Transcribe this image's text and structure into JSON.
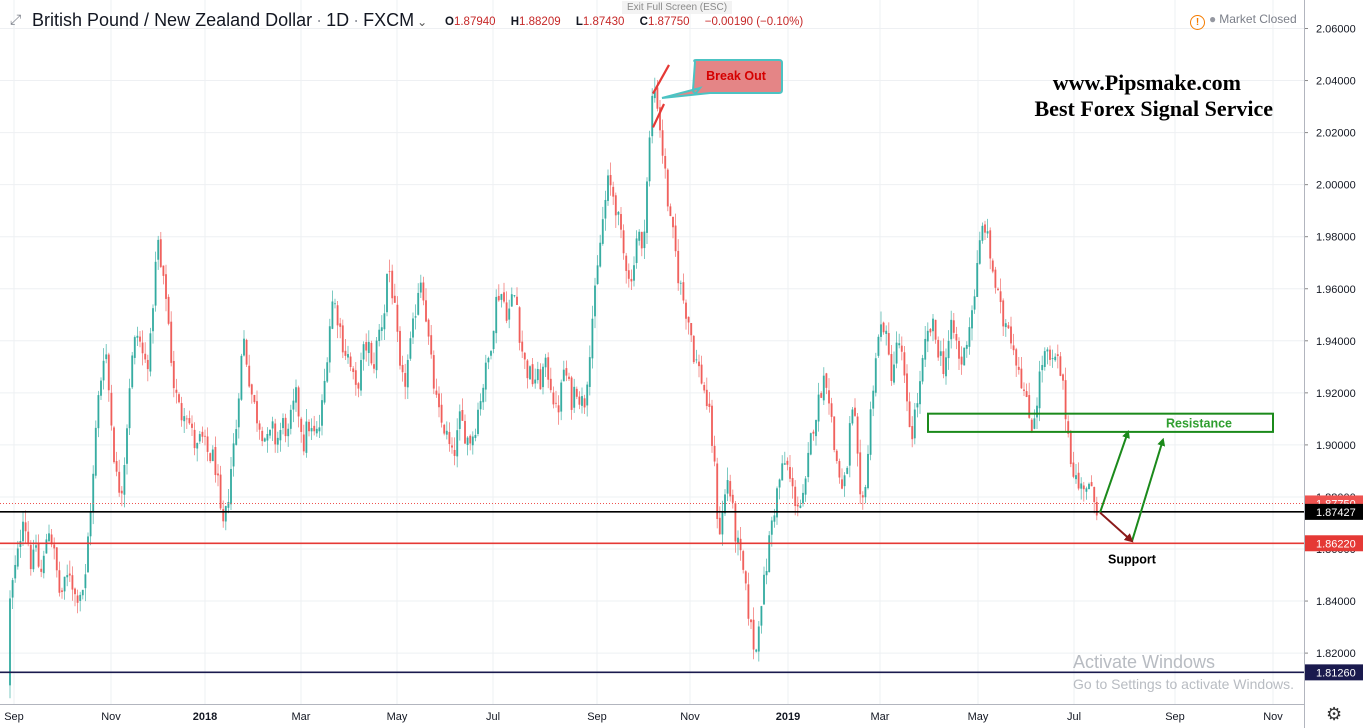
{
  "header": {
    "expand_icon": "expand-icon",
    "instrument": "British Pound / New Zealand Dollar",
    "interval": "1D",
    "source": "FXCM",
    "ohlc": {
      "o_label": "O",
      "o": "1.87940",
      "h_label": "H",
      "h": "1.88209",
      "l_label": "L",
      "l": "1.87430",
      "c_label": "C",
      "c": "1.87750",
      "change": "−0.00190 (−0.10%)"
    },
    "exit_fullscreen": "Exit Full Screen (ESC)",
    "market_status": "Market Closed"
  },
  "watermark": {
    "line1": "www.Pipsmake.com",
    "line2": "Best Forex Signal Service"
  },
  "windows_notice": {
    "line1": "Activate Windows",
    "line2": "Go to Settings to activate Windows."
  },
  "colors": {
    "up": "#26a69a",
    "down": "#ef5350",
    "resistance": "#1b8a1b",
    "support": "#8b1a1a",
    "red_line": "#e53935",
    "navy_line": "#1a1a4e"
  },
  "chart_data": {
    "type": "candlestick",
    "ylim": [
      1.806,
      2.066
    ],
    "y_ticks": [
      "2.06000",
      "2.04000",
      "2.02000",
      "2.00000",
      "1.98000",
      "1.96000",
      "1.94000",
      "1.92000",
      "1.90000",
      "1.88000",
      "1.86000",
      "1.84000",
      "1.82000"
    ],
    "x_labels": [
      "Sep",
      "Nov",
      "2018",
      "Mar",
      "May",
      "Jul",
      "Sep",
      "Nov",
      "2019",
      "Mar",
      "May",
      "Jul",
      "Sep",
      "Nov"
    ],
    "close_path": [
      [
        0,
        1.808
      ],
      [
        6,
        1.826
      ],
      [
        11,
        1.843
      ],
      [
        18,
        1.858
      ],
      [
        23,
        1.874
      ],
      [
        27,
        1.866
      ],
      [
        32,
        1.852
      ],
      [
        36,
        1.862
      ],
      [
        40,
        1.848
      ],
      [
        44,
        1.856
      ],
      [
        48,
        1.87
      ],
      [
        52,
        1.863
      ],
      [
        56,
        1.853
      ],
      [
        60,
        1.842
      ],
      [
        65,
        1.846
      ],
      [
        70,
        1.852
      ],
      [
        75,
        1.842
      ],
      [
        80,
        1.844
      ],
      [
        85,
        1.846
      ],
      [
        89,
        1.87
      ],
      [
        93,
        1.886
      ],
      [
        97,
        1.913
      ],
      [
        101,
        1.926
      ],
      [
        105,
        1.941
      ],
      [
        108,
        1.925
      ],
      [
        112,
        1.906
      ],
      [
        116,
        1.888
      ],
      [
        121,
        1.882
      ],
      [
        125,
        1.897
      ],
      [
        130,
        1.926
      ],
      [
        134,
        1.938
      ],
      [
        138,
        1.943
      ],
      [
        142,
        1.935
      ],
      [
        146,
        1.931
      ],
      [
        150,
        1.936
      ],
      [
        154,
        1.962
      ],
      [
        158,
        1.978
      ],
      [
        162,
        1.963
      ],
      [
        166,
        1.958
      ],
      [
        170,
        1.94
      ],
      [
        173,
        1.925
      ],
      [
        177,
        1.917
      ],
      [
        181,
        1.911
      ],
      [
        185,
        1.916
      ],
      [
        189,
        1.909
      ],
      [
        193,
        1.902
      ],
      [
        197,
        1.898
      ],
      [
        201,
        1.903
      ],
      [
        205,
        1.899
      ],
      [
        209,
        1.896
      ],
      [
        213,
        1.895
      ],
      [
        217,
        1.89
      ],
      [
        220,
        1.872
      ],
      [
        224,
        1.867
      ],
      [
        228,
        1.88
      ],
      [
        232,
        1.895
      ],
      [
        236,
        1.906
      ],
      [
        240,
        1.929
      ],
      [
        244,
        1.94
      ],
      [
        248,
        1.929
      ],
      [
        252,
        1.919
      ],
      [
        256,
        1.912
      ],
      [
        260,
        1.908
      ],
      [
        264,
        1.904
      ],
      [
        268,
        1.9
      ],
      [
        272,
        1.906
      ],
      [
        276,
        1.901
      ],
      [
        280,
        1.905
      ],
      [
        284,
        1.909
      ],
      [
        288,
        1.903
      ],
      [
        292,
        1.912
      ],
      [
        296,
        1.918
      ],
      [
        300,
        1.91
      ],
      [
        304,
        1.9
      ],
      [
        308,
        1.909
      ],
      [
        312,
        1.904
      ],
      [
        316,
        1.903
      ],
      [
        320,
        1.908
      ],
      [
        324,
        1.921
      ],
      [
        328,
        1.94
      ],
      [
        332,
        1.955
      ],
      [
        336,
        1.953
      ],
      [
        340,
        1.945
      ],
      [
        344,
        1.937
      ],
      [
        348,
        1.934
      ],
      [
        352,
        1.927
      ],
      [
        356,
        1.92
      ],
      [
        360,
        1.928
      ],
      [
        364,
        1.936
      ],
      [
        368,
        1.94
      ],
      [
        372,
        1.927
      ],
      [
        376,
        1.937
      ],
      [
        380,
        1.945
      ],
      [
        384,
        1.95
      ],
      [
        388,
        1.971
      ],
      [
        392,
        1.96
      ],
      [
        396,
        1.946
      ],
      [
        400,
        1.927
      ],
      [
        404,
        1.922
      ],
      [
        408,
        1.932
      ],
      [
        412,
        1.941
      ],
      [
        416,
        1.954
      ],
      [
        420,
        1.966
      ],
      [
        424,
        1.958
      ],
      [
        428,
        1.942
      ],
      [
        432,
        1.928
      ],
      [
        436,
        1.917
      ],
      [
        440,
        1.909
      ],
      [
        444,
        1.907
      ],
      [
        448,
        1.901
      ],
      [
        452,
        1.895
      ],
      [
        456,
        1.9
      ],
      [
        460,
        1.91
      ],
      [
        464,
        1.906
      ],
      [
        468,
        1.902
      ],
      [
        472,
        1.903
      ],
      [
        476,
        1.909
      ],
      [
        480,
        1.918
      ],
      [
        484,
        1.925
      ],
      [
        488,
        1.932
      ],
      [
        492,
        1.943
      ],
      [
        496,
        1.955
      ],
      [
        500,
        1.96
      ],
      [
        504,
        1.955
      ],
      [
        508,
        1.95
      ],
      [
        512,
        1.956
      ],
      [
        516,
        1.958
      ],
      [
        520,
        1.942
      ],
      [
        524,
        1.932
      ],
      [
        528,
        1.928
      ],
      [
        532,
        1.925
      ],
      [
        536,
        1.926
      ],
      [
        540,
        1.924
      ],
      [
        544,
        1.93
      ],
      [
        548,
        1.928
      ],
      [
        552,
        1.922
      ],
      [
        556,
        1.912
      ],
      [
        560,
        1.917
      ],
      [
        564,
        1.93
      ],
      [
        568,
        1.923
      ],
      [
        572,
        1.917
      ],
      [
        576,
        1.924
      ],
      [
        580,
        1.918
      ],
      [
        584,
        1.915
      ],
      [
        588,
        1.93
      ],
      [
        592,
        1.948
      ],
      [
        596,
        1.96
      ],
      [
        600,
        1.977
      ],
      [
        604,
        1.99
      ],
      [
        608,
        2.0
      ],
      [
        612,
        1.998
      ],
      [
        616,
        1.992
      ],
      [
        620,
        1.981
      ],
      [
        624,
        1.972
      ],
      [
        628,
        1.969
      ],
      [
        631,
        1.96
      ],
      [
        634,
        1.973
      ],
      [
        638,
        1.984
      ],
      [
        642,
        1.972
      ],
      [
        645,
        1.99
      ],
      [
        648,
        2.007
      ],
      [
        651,
        2.025
      ],
      [
        653,
        2.038
      ],
      [
        656,
        2.036
      ],
      [
        658,
        2.03
      ],
      [
        661,
        2.018
      ],
      [
        664,
        2.008
      ],
      [
        667,
        1.997
      ],
      [
        670,
        1.985
      ],
      [
        674,
        1.978
      ],
      [
        678,
        1.966
      ],
      [
        682,
        1.958
      ],
      [
        686,
        1.952
      ],
      [
        690,
        1.946
      ],
      [
        694,
        1.935
      ],
      [
        698,
        1.93
      ],
      [
        702,
        1.925
      ],
      [
        706,
        1.918
      ],
      [
        710,
        1.909
      ],
      [
        714,
        1.894
      ],
      [
        717,
        1.875
      ],
      [
        720,
        1.867
      ],
      [
        724,
        1.878
      ],
      [
        728,
        1.888
      ],
      [
        732,
        1.876
      ],
      [
        736,
        1.864
      ],
      [
        740,
        1.857
      ],
      [
        743,
        1.851
      ],
      [
        746,
        1.842
      ],
      [
        749,
        1.835
      ],
      [
        752,
        1.826
      ],
      [
        756,
        1.82
      ],
      [
        759,
        1.835
      ],
      [
        762,
        1.843
      ],
      [
        765,
        1.848
      ],
      [
        768,
        1.859
      ],
      [
        771,
        1.869
      ],
      [
        775,
        1.877
      ],
      [
        778,
        1.884
      ],
      [
        782,
        1.89
      ],
      [
        786,
        1.894
      ],
      [
        790,
        1.886
      ],
      [
        794,
        1.88
      ],
      [
        798,
        1.878
      ],
      [
        802,
        1.876
      ],
      [
        806,
        1.885
      ],
      [
        810,
        1.9
      ],
      [
        814,
        1.91
      ],
      [
        818,
        1.915
      ],
      [
        822,
        1.924
      ],
      [
        826,
        1.927
      ],
      [
        830,
        1.916
      ],
      [
        834,
        1.899
      ],
      [
        838,
        1.892
      ],
      [
        842,
        1.882
      ],
      [
        846,
        1.887
      ],
      [
        850,
        1.907
      ],
      [
        854,
        1.913
      ],
      [
        858,
        1.89
      ],
      [
        861,
        1.872
      ],
      [
        864,
        1.882
      ],
      [
        868,
        1.897
      ],
      [
        872,
        1.92
      ],
      [
        876,
        1.935
      ],
      [
        880,
        1.944
      ],
      [
        884,
        1.947
      ],
      [
        888,
        1.934
      ],
      [
        892,
        1.927
      ],
      [
        896,
        1.936
      ],
      [
        900,
        1.94
      ],
      [
        904,
        1.925
      ],
      [
        908,
        1.91
      ],
      [
        912,
        1.905
      ],
      [
        916,
        1.915
      ],
      [
        920,
        1.922
      ],
      [
        924,
        1.935
      ],
      [
        928,
        1.942
      ],
      [
        932,
        1.946
      ],
      [
        936,
        1.94
      ],
      [
        940,
        1.935
      ],
      [
        944,
        1.93
      ],
      [
        948,
        1.938
      ],
      [
        952,
        1.945
      ],
      [
        956,
        1.94
      ],
      [
        960,
        1.93
      ],
      [
        964,
        1.935
      ],
      [
        968,
        1.944
      ],
      [
        972,
        1.952
      ],
      [
        976,
        1.963
      ],
      [
        980,
        1.977
      ],
      [
        984,
        1.987
      ],
      [
        988,
        1.977
      ],
      [
        992,
        1.969
      ],
      [
        996,
        1.96
      ],
      [
        1000,
        1.952
      ],
      [
        1004,
        1.946
      ],
      [
        1008,
        1.949
      ],
      [
        1012,
        1.94
      ],
      [
        1016,
        1.934
      ],
      [
        1020,
        1.929
      ],
      [
        1024,
        1.92
      ],
      [
        1028,
        1.912
      ],
      [
        1032,
        1.908
      ],
      [
        1036,
        1.915
      ],
      [
        1040,
        1.927
      ],
      [
        1044,
        1.935
      ],
      [
        1048,
        1.933
      ],
      [
        1052,
        1.93
      ],
      [
        1056,
        1.933
      ],
      [
        1060,
        1.929
      ],
      [
        1064,
        1.918
      ],
      [
        1068,
        1.905
      ],
      [
        1072,
        1.893
      ],
      [
        1076,
        1.887
      ],
      [
        1080,
        1.882
      ],
      [
        1084,
        1.886
      ],
      [
        1088,
        1.884
      ],
      [
        1092,
        1.88
      ],
      [
        1097,
        1.877
      ]
    ],
    "horizontal_levels": [
      {
        "value": 1.8775,
        "label": "1.87750",
        "style": "dotted",
        "color": "#ef5350"
      },
      {
        "value": 1.87427,
        "label": "1.87427",
        "style": "solid",
        "color": "#000000"
      },
      {
        "value": 1.8622,
        "label": "1.86220",
        "style": "solid",
        "color": "#e53935"
      },
      {
        "value": 1.8126,
        "label": "1.81260",
        "style": "solid",
        "color": "#1a1a4e"
      }
    ],
    "annotations": {
      "breakout": {
        "text": "Break Out"
      },
      "resistance": {
        "text": "Resistance",
        "zone": [
          1.905,
          1.912
        ]
      },
      "support": {
        "text": "Support"
      }
    }
  }
}
